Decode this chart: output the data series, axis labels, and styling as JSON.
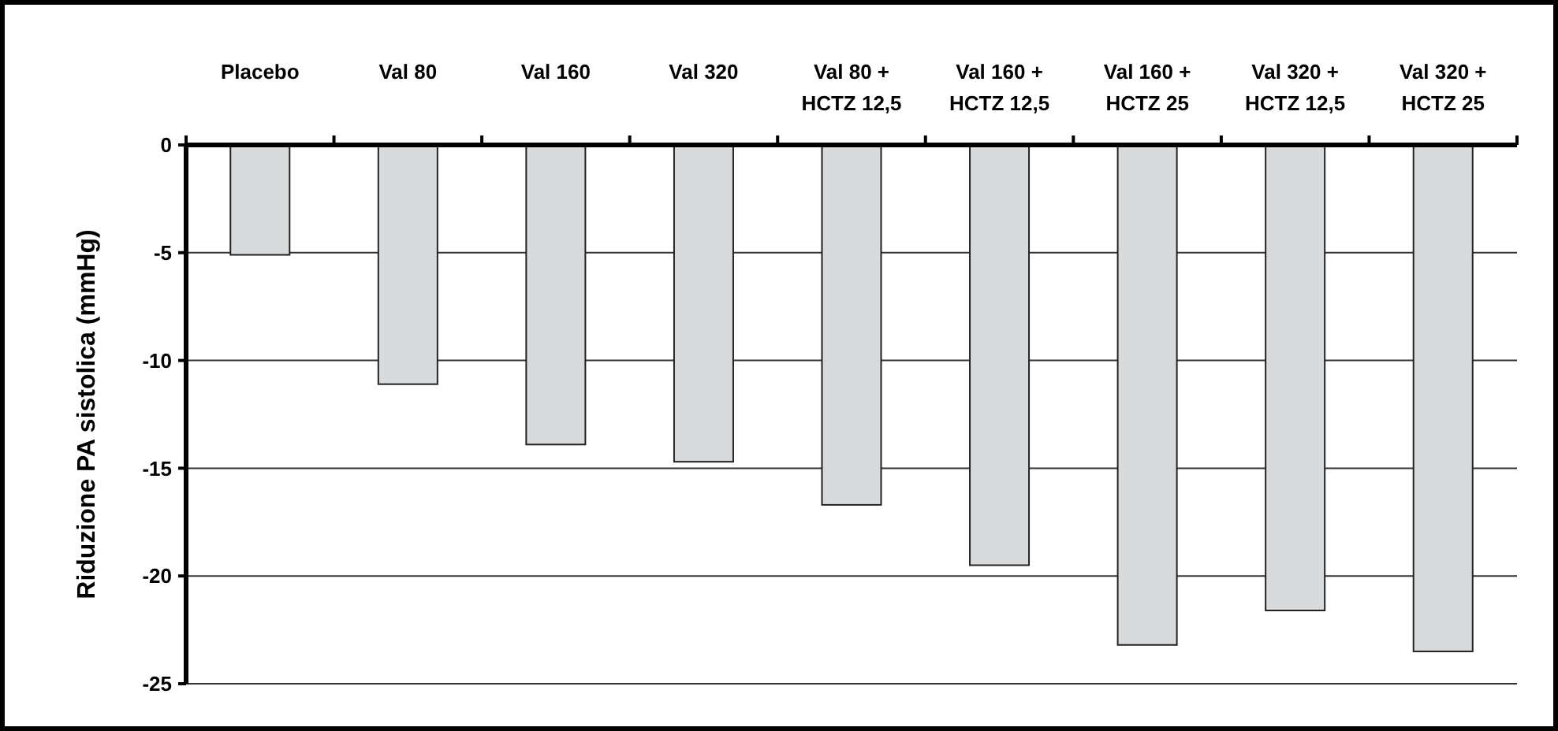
{
  "chart_data": {
    "type": "bar",
    "ylabel": "Riduzione PA sistolica (mmHg)",
    "categories": [
      "Placebo",
      "Val 80",
      "Val 160",
      "Val 320",
      "Val 80 +\nHCTZ 12,5",
      "Val 160 +\nHCTZ 12,5",
      "Val 160 +\nHCTZ 25",
      "Val 320 +\nHCTZ 12,5",
      "Val 320 +\nHCTZ 25"
    ],
    "values": [
      -5.1,
      -11.1,
      -13.9,
      -14.7,
      -16.7,
      -19.5,
      -23.2,
      -21.6,
      -23.5
    ],
    "color": "#d9dadc",
    "ylim": [
      -25,
      0
    ],
    "yticks": [
      0,
      -5,
      -10,
      -15,
      -20,
      -25
    ],
    "grid": "y"
  }
}
